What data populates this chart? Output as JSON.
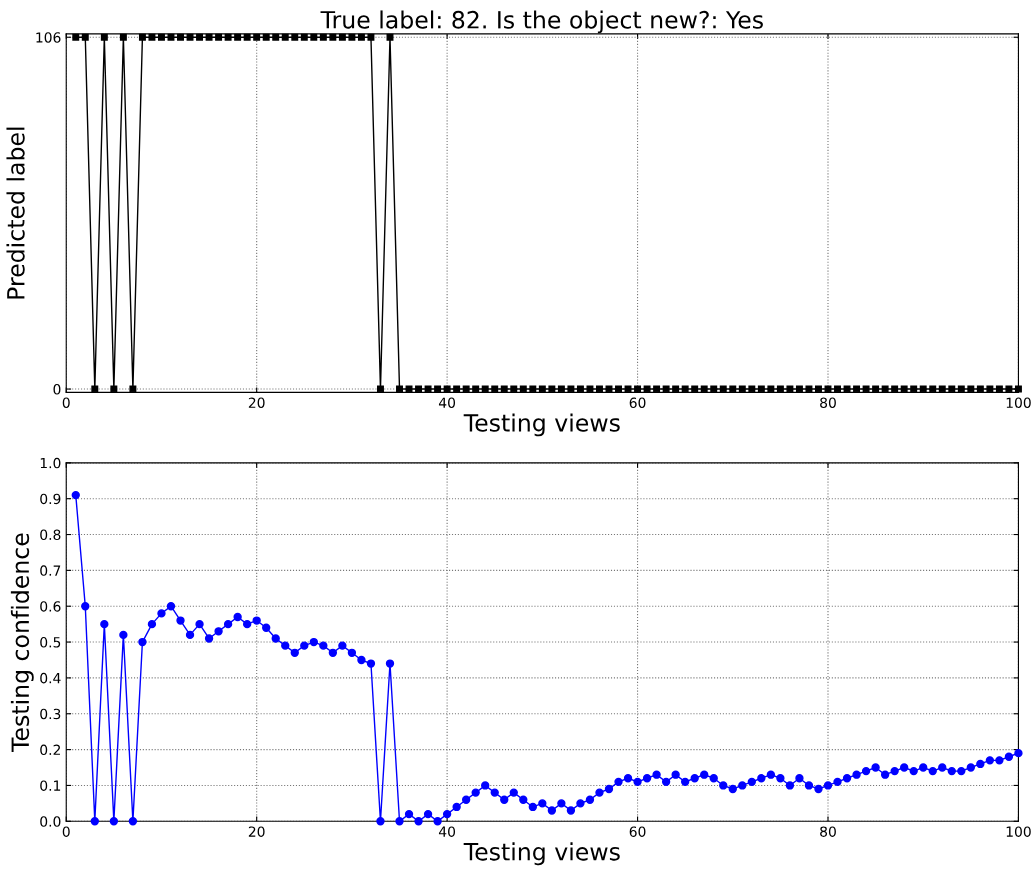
{
  "chart_data": [
    {
      "type": "line",
      "title": "True label: 82. Is the object new?: Yes",
      "xlabel": "Testing views",
      "ylabel": "Predicted label",
      "xlim": [
        0,
        100
      ],
      "xticks": [
        0,
        20,
        40,
        60,
        80,
        100
      ],
      "ylim": [
        -1,
        107
      ],
      "yticks": [
        0,
        106
      ],
      "grid": true,
      "marker": "square",
      "line_style": "solid",
      "x": [
        1,
        2,
        3,
        4,
        5,
        6,
        7,
        8,
        9,
        10,
        11,
        12,
        13,
        14,
        15,
        16,
        17,
        18,
        19,
        20,
        21,
        22,
        23,
        24,
        25,
        26,
        27,
        28,
        29,
        30,
        31,
        32,
        33,
        34,
        35,
        36,
        37,
        38,
        39,
        40,
        41,
        42,
        43,
        44,
        45,
        46,
        47,
        48,
        49,
        50,
        51,
        52,
        53,
        54,
        55,
        56,
        57,
        58,
        59,
        60,
        61,
        62,
        63,
        64,
        65,
        66,
        67,
        68,
        69,
        70,
        71,
        72,
        73,
        74,
        75,
        76,
        77,
        78,
        79,
        80,
        81,
        82,
        83,
        84,
        85,
        86,
        87,
        88,
        89,
        90,
        91,
        92,
        93,
        94,
        95,
        96,
        97,
        98,
        99,
        100
      ],
      "series": [
        {
          "color": "#000000",
          "values": [
            106,
            106,
            0,
            106,
            0,
            106,
            0,
            106,
            106,
            106,
            106,
            106,
            106,
            106,
            106,
            106,
            106,
            106,
            106,
            106,
            106,
            106,
            106,
            106,
            106,
            106,
            106,
            106,
            106,
            106,
            106,
            106,
            0,
            106,
            0,
            0,
            0,
            0,
            0,
            0,
            0,
            0,
            0,
            0,
            0,
            0,
            0,
            0,
            0,
            0,
            0,
            0,
            0,
            0,
            0,
            0,
            0,
            0,
            0,
            0,
            0,
            0,
            0,
            0,
            0,
            0,
            0,
            0,
            0,
            0,
            0,
            0,
            0,
            0,
            0,
            0,
            0,
            0,
            0,
            0,
            0,
            0,
            0,
            0,
            0,
            0,
            0,
            0,
            0,
            0,
            0,
            0,
            0,
            0,
            0,
            0,
            0,
            0,
            0,
            0
          ]
        }
      ]
    },
    {
      "type": "line",
      "xlabel": "Testing views",
      "ylabel": "Testing confidence",
      "xlim": [
        0,
        100
      ],
      "xticks": [
        0,
        20,
        40,
        60,
        80,
        100
      ],
      "ylim": [
        0,
        1
      ],
      "yticks": [
        {
          "value": 0,
          "label": "0.0"
        },
        0.1,
        0.2,
        0.3,
        0.4,
        0.5,
        0.6,
        0.7,
        0.8,
        0.9,
        {
          "value": 1,
          "label": "1.0"
        }
      ],
      "grid": true,
      "marker": "circle",
      "line_style": "solid",
      "x": [
        1,
        2,
        3,
        4,
        5,
        6,
        7,
        8,
        9,
        10,
        11,
        12,
        13,
        14,
        15,
        16,
        17,
        18,
        19,
        20,
        21,
        22,
        23,
        24,
        25,
        26,
        27,
        28,
        29,
        30,
        31,
        32,
        33,
        34,
        35,
        36,
        37,
        38,
        39,
        40,
        41,
        42,
        43,
        44,
        45,
        46,
        47,
        48,
        49,
        50,
        51,
        52,
        53,
        54,
        55,
        56,
        57,
        58,
        59,
        60,
        61,
        62,
        63,
        64,
        65,
        66,
        67,
        68,
        69,
        70,
        71,
        72,
        73,
        74,
        75,
        76,
        77,
        78,
        79,
        80,
        81,
        82,
        83,
        84,
        85,
        86,
        87,
        88,
        89,
        90,
        91,
        92,
        93,
        94,
        95,
        96,
        97,
        98,
        99,
        100
      ],
      "series": [
        {
          "color": "#0000ff",
          "values": [
            0.91,
            0.6,
            0,
            0.55,
            0,
            0.52,
            0,
            0.5,
            0.55,
            0.58,
            0.6,
            0.56,
            0.52,
            0.55,
            0.51,
            0.53,
            0.55,
            0.57,
            0.55,
            0.56,
            0.54,
            0.51,
            0.49,
            0.47,
            0.49,
            0.5,
            0.49,
            0.47,
            0.49,
            0.47,
            0.45,
            0.44,
            0,
            0.44,
            0,
            0.02,
            0,
            0.02,
            0,
            0.02,
            0.04,
            0.06,
            0.08,
            0.1,
            0.08,
            0.06,
            0.08,
            0.06,
            0.04,
            0.05,
            0.03,
            0.05,
            0.03,
            0.05,
            0.06,
            0.08,
            0.09,
            0.11,
            0.12,
            0.11,
            0.12,
            0.13,
            0.11,
            0.13,
            0.11,
            0.12,
            0.13,
            0.12,
            0.1,
            0.09,
            0.1,
            0.11,
            0.12,
            0.13,
            0.12,
            0.1,
            0.12,
            0.1,
            0.09,
            0.1,
            0.11,
            0.12,
            0.13,
            0.14,
            0.15,
            0.13,
            0.14,
            0.15,
            0.14,
            0.15,
            0.14,
            0.15,
            0.14,
            0.14,
            0.15,
            0.16,
            0.17,
            0.17,
            0.18,
            0.19
          ]
        }
      ]
    }
  ]
}
